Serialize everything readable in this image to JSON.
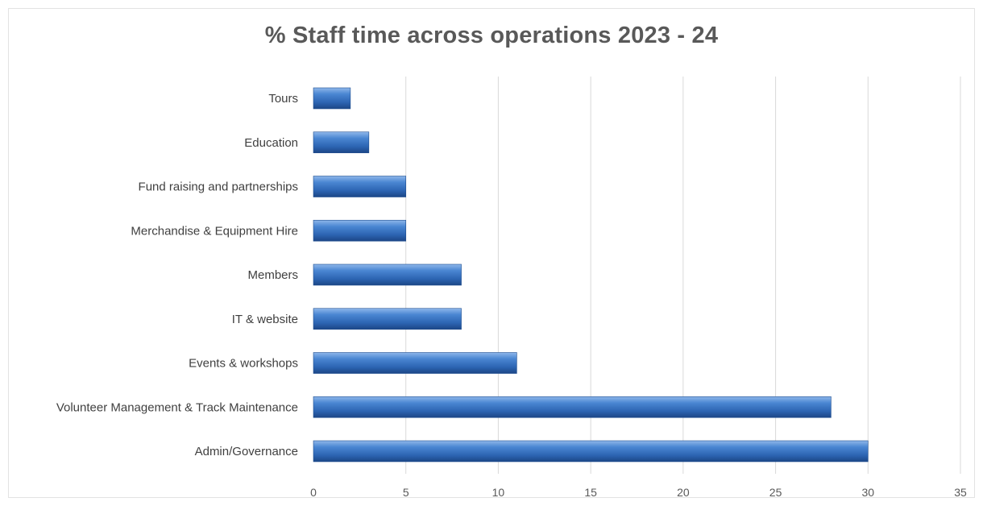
{
  "chart_data": {
    "type": "bar",
    "orientation": "horizontal",
    "title": "% Staff time across operations 2023 - 24",
    "xlabel": "",
    "ylabel": "",
    "categories": [
      "Tours",
      "Education",
      "Fund raising and partnerships",
      "Merchandise & Equipment Hire",
      "Members",
      "IT & website",
      "Events & workshops",
      "Volunteer Management & Track Maintenance",
      "Admin/Governance"
    ],
    "values": [
      2,
      3,
      5,
      5,
      8,
      8,
      11,
      28,
      30
    ],
    "xlim": [
      0,
      35
    ],
    "xticks": [
      "0",
      "5",
      "10",
      "15",
      "20",
      "25",
      "30",
      "35"
    ],
    "grid": true,
    "legend": "none",
    "bar_color": "#3a76c4"
  }
}
